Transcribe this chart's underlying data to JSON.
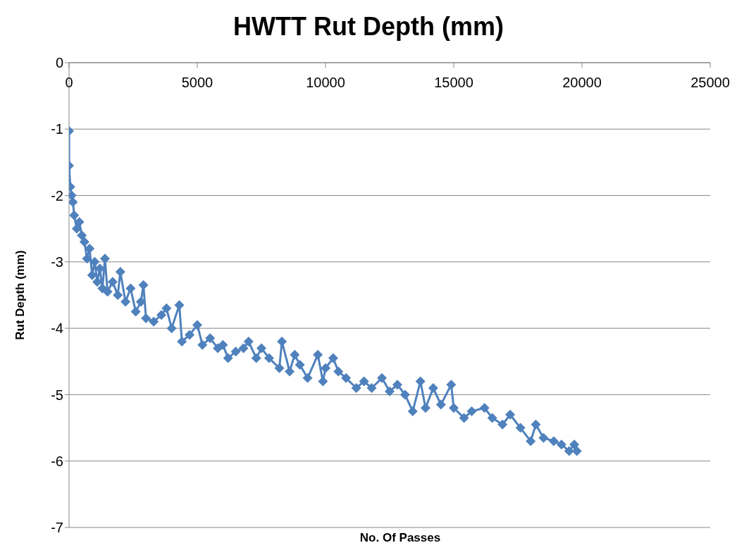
{
  "chart_data": {
    "type": "line",
    "title": "HWTT Rut Depth (mm)",
    "xlabel": "No. Of Passes",
    "ylabel": "Rut Depth (mm)",
    "x": [
      0,
      0,
      50,
      100,
      150,
      200,
      300,
      400,
      500,
      600,
      700,
      800,
      900,
      1000,
      1100,
      1200,
      1300,
      1400,
      1500,
      1700,
      1900,
      2000,
      2200,
      2400,
      2600,
      2800,
      2900,
      3000,
      3300,
      3600,
      3800,
      4000,
      4300,
      4400,
      4700,
      5000,
      5200,
      5500,
      5800,
      6000,
      6200,
      6500,
      6800,
      7000,
      7300,
      7500,
      7800,
      8200,
      8300,
      8600,
      8800,
      9000,
      9300,
      9700,
      9900,
      10000,
      10300,
      10500,
      10800,
      11200,
      11500,
      11800,
      12200,
      12500,
      12800,
      13100,
      13400,
      13700,
      13900,
      14200,
      14500,
      14900,
      15000,
      15400,
      15700,
      16200,
      16500,
      16900,
      17200,
      17600,
      18000,
      18200,
      18500,
      18900,
      19200,
      19500,
      19700,
      19800
    ],
    "series": [
      {
        "color": "#4f81bd",
        "values": [
          -1.03,
          -1.55,
          -1.87,
          -2.0,
          -2.1,
          -2.3,
          -2.5,
          -2.4,
          -2.6,
          -2.7,
          -2.95,
          -2.8,
          -3.2,
          -3.0,
          -3.3,
          -3.1,
          -3.4,
          -2.95,
          -3.45,
          -3.3,
          -3.5,
          -3.15,
          -3.6,
          -3.4,
          -3.75,
          -3.6,
          -3.35,
          -3.85,
          -3.9,
          -3.8,
          -3.7,
          -4.0,
          -3.65,
          -4.2,
          -4.1,
          -3.95,
          -4.25,
          -4.15,
          -4.3,
          -4.25,
          -4.45,
          -4.35,
          -4.3,
          -4.2,
          -4.45,
          -4.3,
          -4.45,
          -4.6,
          -4.2,
          -4.65,
          -4.4,
          -4.55,
          -4.75,
          -4.4,
          -4.8,
          -4.6,
          -4.45,
          -4.65,
          -4.75,
          -4.9,
          -4.8,
          -4.9,
          -4.75,
          -4.95,
          -4.85,
          -5.0,
          -5.25,
          -4.8,
          -5.2,
          -4.9,
          -5.15,
          -4.85,
          -5.2,
          -5.35,
          -5.25,
          -5.2,
          -5.35,
          -5.45,
          -5.3,
          -5.5,
          -5.7,
          -5.45,
          -5.65,
          -5.7,
          -5.75,
          -5.85,
          -5.75,
          -5.85
        ]
      }
    ],
    "xlim": [
      0,
      25000
    ],
    "xticks": [
      0,
      5000,
      10000,
      15000,
      20000,
      25000
    ],
    "ylim": [
      -7,
      0
    ],
    "yticks": [
      -7,
      -6,
      -5,
      -4,
      -3,
      -2,
      -1,
      0
    ],
    "grid": "y",
    "legend": false,
    "marker": "diamond",
    "line_style": "solid"
  }
}
